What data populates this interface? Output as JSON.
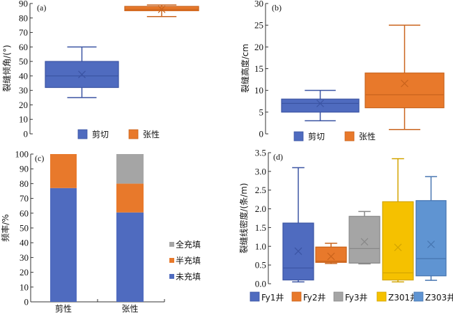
{
  "chart_data": [
    {
      "id": "a",
      "type": "box",
      "panel_label": "(a)",
      "ylabel": "裂缝倾角/(°)",
      "ylim": [
        0,
        90
      ],
      "yticks": [
        "0",
        "10",
        "20",
        "30",
        "40",
        "50",
        "60",
        "70",
        "80",
        "90"
      ],
      "ytick_values": [
        0,
        10,
        20,
        30,
        40,
        50,
        60,
        70,
        80,
        90
      ],
      "legend": [
        "剪切",
        "张性"
      ],
      "legend_position": "bottom-center",
      "series": [
        {
          "name": "剪切",
          "color": "#4f6bbf",
          "stroke": "#3b54a3",
          "min": 25,
          "q1": 32,
          "median": 40,
          "q3": 50,
          "max": 60,
          "mean": 41
        },
        {
          "name": "张性",
          "color": "#e8792b",
          "stroke": "#c9631c",
          "min": 81,
          "q1": 85,
          "median": 86,
          "q3": 88,
          "max": 89,
          "mean": 86
        }
      ]
    },
    {
      "id": "b",
      "type": "box",
      "panel_label": "(b)",
      "ylabel": "裂缝高度/cm",
      "ylim": [
        0,
        30
      ],
      "yticks": [
        "0",
        "5",
        "10",
        "15",
        "20",
        "25",
        "30"
      ],
      "ytick_values": [
        0,
        5,
        10,
        15,
        20,
        25,
        30
      ],
      "legend": [
        "剪切",
        "张性"
      ],
      "legend_position": "bottom-center",
      "series": [
        {
          "name": "剪切",
          "color": "#4f6bbf",
          "stroke": "#3b54a3",
          "min": 3,
          "q1": 5,
          "median": 7,
          "q3": 8,
          "max": 10,
          "mean": 7
        },
        {
          "name": "张性",
          "color": "#e8792b",
          "stroke": "#c9631c",
          "min": 1,
          "q1": 6,
          "median": 9,
          "q3": 14,
          "max": 25,
          "mean": 11.6
        }
      ]
    },
    {
      "id": "c",
      "type": "bar",
      "stacked": true,
      "panel_label": "(c)",
      "ylabel": "频率/%",
      "ylim": [
        0,
        100
      ],
      "yticks": [
        "0",
        "10",
        "20",
        "30",
        "40",
        "50",
        "60",
        "70",
        "80",
        "90",
        "100"
      ],
      "ytick_values": [
        0,
        10,
        20,
        30,
        40,
        50,
        60,
        70,
        80,
        90,
        100
      ],
      "categories": [
        "剪性",
        "张性"
      ],
      "legend_position": "right",
      "legend": [
        "全充填",
        "半充填",
        "未充填"
      ],
      "series": [
        {
          "name": "未充填",
          "color": "#4f6bbf",
          "values": [
            77,
            60.5
          ]
        },
        {
          "name": "半充填",
          "color": "#e8792b",
          "values": [
            23,
            19.5
          ]
        },
        {
          "name": "全充填",
          "color": "#a5a5a5",
          "values": [
            0,
            20
          ]
        }
      ]
    },
    {
      "id": "d",
      "type": "box",
      "panel_label": "(d)",
      "ylabel": "裂缝线密度/(条/m)",
      "ylim": [
        0,
        3.5
      ],
      "yticks": [
        "0.0",
        "0.5",
        "1.0",
        "1.5",
        "2.0",
        "2.5",
        "3.0",
        "3.5"
      ],
      "ytick_values": [
        0,
        0.5,
        1.0,
        1.5,
        2.0,
        2.5,
        3.0,
        3.5
      ],
      "legend": [
        "Fy1井",
        "Fy2井",
        "Fy3井",
        "Z301井",
        "Z303井"
      ],
      "legend_position": "bottom",
      "series": [
        {
          "name": "Fy1井",
          "color": "#4f6bbf",
          "stroke": "#3b54a3",
          "min": 0.05,
          "q1": 0.1,
          "median": 0.42,
          "q3": 1.62,
          "max": 3.1,
          "mean": 0.87
        },
        {
          "name": "Fy2井",
          "color": "#e8792b",
          "stroke": "#c9631c",
          "min": 0.54,
          "q1": 0.57,
          "median": 0.6,
          "q3": 0.98,
          "max": 1.08,
          "mean": 0.73
        },
        {
          "name": "Fy3井",
          "color": "#a5a5a5",
          "stroke": "#888888",
          "min": 0.53,
          "q1": 0.55,
          "median": 0.94,
          "q3": 1.8,
          "max": 1.93,
          "mean": 1.12
        },
        {
          "name": "Z301井",
          "color": "#f5c100",
          "stroke": "#d2a400",
          "min": 0.05,
          "q1": 0.1,
          "median": 0.29,
          "q3": 2.19,
          "max": 3.34,
          "mean": 0.97
        },
        {
          "name": "Z303井",
          "color": "#5f94d2",
          "stroke": "#4675b0",
          "min": 0.09,
          "q1": 0.21,
          "median": 0.67,
          "q3": 2.22,
          "max": 2.86,
          "mean": 1.05
        }
      ]
    }
  ]
}
